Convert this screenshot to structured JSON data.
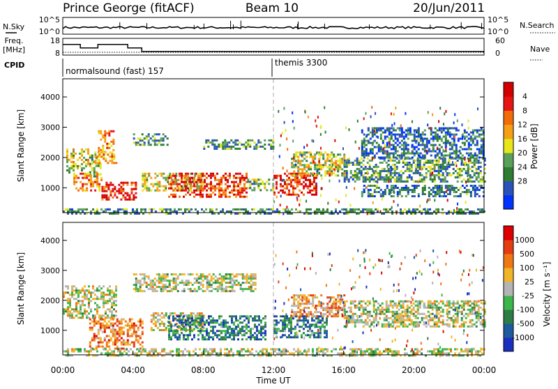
{
  "header": {
    "station": "Prince George (fitACF)",
    "beam": "Beam 10",
    "date": "20/Jun/2011"
  },
  "noise_panel": {
    "left_label": "N.Sky",
    "right_label": "N.Search",
    "left_ticks": [
      "10^5",
      "10^0"
    ],
    "right_ticks": [
      "10^5",
      "10^0"
    ]
  },
  "freq_panel": {
    "left_label_1": "Freq.",
    "left_label_2": "[MHz]",
    "left_ticks": [
      "18",
      "8"
    ],
    "right_label": "Nave",
    "right_ticks": [
      "60",
      "0"
    ],
    "freq_steps": [
      {
        "t": 0,
        "f": 17
      },
      {
        "t": 1,
        "f": 14
      },
      {
        "t": 2,
        "f": 17
      },
      {
        "t": 3.7,
        "f": 14
      },
      {
        "t": 4.5,
        "f": 11
      },
      {
        "t": 24,
        "f": 11
      }
    ],
    "nave_level": 10
  },
  "cpid": {
    "label": "CPID",
    "programs": [
      {
        "name": "normalsound (fast) 157",
        "start": 0
      },
      {
        "name": "themis 3300",
        "start": 12
      }
    ]
  },
  "time_axis": {
    "ticks": [
      "00:00",
      "04:00",
      "08:00",
      "12:00",
      "16:00",
      "20:00",
      "00:00"
    ],
    "label": "Time UT"
  },
  "chart_data": [
    {
      "type": "heatmap",
      "name": "power",
      "ylabel": "Slant Range [km]",
      "yticks": [
        "1000",
        "2000",
        "3000",
        "4000"
      ],
      "ylim": [
        180,
        4600
      ],
      "xlim": [
        0,
        24
      ],
      "colorbar": {
        "label": "Power [dB]",
        "ticks": [
          "4",
          "8",
          "12",
          "16",
          "20",
          "24",
          "28"
        ],
        "colors": [
          "#0033ff",
          "#2a52b8",
          "#2e7d32",
          "#5aa05a",
          "#e6e61a",
          "#f5a014",
          "#f26d0a",
          "#e61414",
          "#d20000"
        ]
      },
      "bands": [
        {
          "t0": 0.2,
          "t1": 1.5,
          "r0": 1500,
          "r1": 2300,
          "level": 0.5
        },
        {
          "t0": 1.5,
          "t1": 2.2,
          "r0": 1400,
          "r1": 2100,
          "level": 0.4
        },
        {
          "t0": 2.0,
          "t1": 2.9,
          "r0": 2200,
          "r1": 2900,
          "level": 0.7
        },
        {
          "t0": 1.8,
          "t1": 3.0,
          "r0": 1800,
          "r1": 2200,
          "level": 0.6
        },
        {
          "t0": 0.6,
          "t1": 2.2,
          "r0": 900,
          "r1": 1500,
          "level": 0.7
        },
        {
          "t0": 2.2,
          "t1": 4.2,
          "r0": 600,
          "r1": 1200,
          "level": 0.85
        },
        {
          "t0": 4.5,
          "t1": 8.0,
          "r0": 900,
          "r1": 1500,
          "level": 0.5
        },
        {
          "t0": 6.0,
          "t1": 10.5,
          "r0": 700,
          "r1": 1500,
          "level": 0.8
        },
        {
          "t0": 10.5,
          "t1": 12.0,
          "r0": 900,
          "r1": 1300,
          "level": 0.4
        },
        {
          "t0": 12.0,
          "t1": 14.5,
          "r0": 800,
          "r1": 1500,
          "level": 0.85
        },
        {
          "t0": 13.0,
          "t1": 16.0,
          "r0": 1400,
          "r1": 2200,
          "level": 0.5
        },
        {
          "t0": 16.0,
          "t1": 24.0,
          "r0": 1200,
          "r1": 2000,
          "level": 0.3
        },
        {
          "t0": 17.0,
          "t1": 24.0,
          "r0": 700,
          "r1": 1100,
          "level": 0.25
        },
        {
          "t0": 8.0,
          "t1": 12.0,
          "r0": 2300,
          "r1": 2600,
          "level": 0.3
        },
        {
          "t0": 4.0,
          "t1": 6.0,
          "r0": 2400,
          "r1": 2800,
          "level": 0.3
        },
        {
          "t0": 0.0,
          "t1": 24.0,
          "r0": 180,
          "r1": 320,
          "level": 0.3
        },
        {
          "t0": 17.0,
          "t1": 24.0,
          "r0": 2000,
          "r1": 3000,
          "level": 0.2
        }
      ]
    },
    {
      "type": "heatmap",
      "name": "velocity",
      "ylabel": "Slant Range [km]",
      "yticks": [
        "1000",
        "2000",
        "3000",
        "4000"
      ],
      "ylim": [
        180,
        4600
      ],
      "xlim": [
        0,
        24
      ],
      "colorbar": {
        "label": "Velocity [m s⁻¹]",
        "ticks": [
          "1000",
          "500",
          "100",
          "25",
          "-25",
          "-100",
          "-500",
          "-1000"
        ],
        "colors": [
          "#1a2ebf",
          "#1e5a9e",
          "#2e7d46",
          "#3cb54a",
          "#b4b4b4",
          "#f0b428",
          "#f07814",
          "#e63c14",
          "#dc0000"
        ]
      },
      "bands": [
        {
          "t0": 0.0,
          "t1": 3.0,
          "r0": 1400,
          "r1": 2500,
          "level": 0.5
        },
        {
          "t0": 1.5,
          "t1": 4.5,
          "r0": 400,
          "r1": 1400,
          "level": 0.72
        },
        {
          "t0": 5.0,
          "t1": 8.0,
          "r0": 1000,
          "r1": 1600,
          "level": 0.55
        },
        {
          "t0": 6.0,
          "t1": 11.5,
          "r0": 700,
          "r1": 1500,
          "level": 0.25
        },
        {
          "t0": 12.0,
          "t1": 15.0,
          "r0": 800,
          "r1": 1500,
          "level": 0.28
        },
        {
          "t0": 13.0,
          "t1": 16.0,
          "r0": 1500,
          "r1": 2200,
          "level": 0.65
        },
        {
          "t0": 16.0,
          "t1": 24.0,
          "r0": 1100,
          "r1": 2000,
          "level": 0.5
        },
        {
          "t0": 4.0,
          "t1": 11.0,
          "r0": 2300,
          "r1": 2900,
          "level": 0.5
        },
        {
          "t0": 0.0,
          "t1": 24.0,
          "r0": 180,
          "r1": 400,
          "level": 0.5
        }
      ]
    }
  ]
}
